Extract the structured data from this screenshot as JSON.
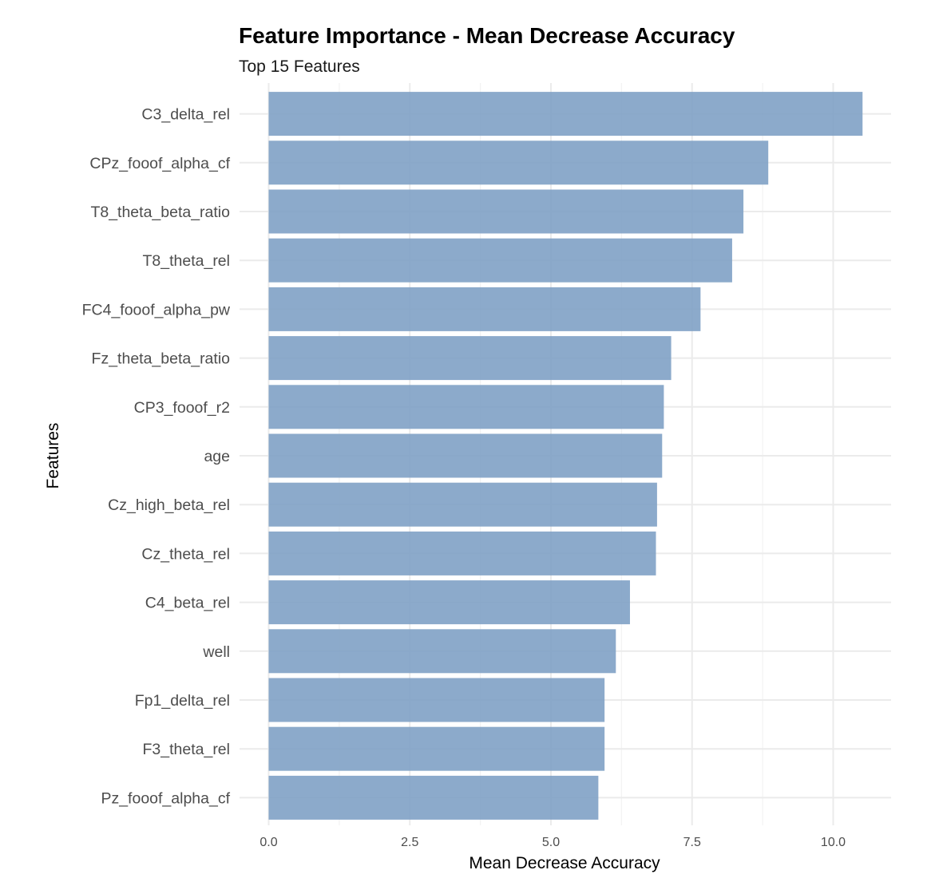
{
  "chart_data": {
    "type": "bar",
    "orientation": "horizontal",
    "title": "Feature Importance - Mean Decrease Accuracy",
    "subtitle": "Top 15 Features",
    "xlabel": "Mean Decrease Accuracy",
    "ylabel": "Features",
    "xlim": [
      0,
      10.5
    ],
    "x_ticks": [
      "0.0",
      "2.5",
      "5.0",
      "7.5",
      "10.0"
    ],
    "x_tick_values": [
      0,
      2.5,
      5.0,
      7.5,
      10.0
    ],
    "grid": true,
    "legend": "none",
    "bar_color": "#7fa1c5",
    "categories": [
      "C3_delta_rel",
      "CPz_fooof_alpha_cf",
      "T8_theta_beta_ratio",
      "T8_theta_rel",
      "FC4_fooof_alpha_pw",
      "Fz_theta_beta_ratio",
      "CP3_fooof_r2",
      "age",
      "Cz_high_beta_rel",
      "Cz_theta_rel",
      "C4_beta_rel",
      "well",
      "Fp1_delta_rel",
      "F3_theta_rel",
      "Pz_fooof_alpha_cf"
    ],
    "values": [
      10.52,
      8.85,
      8.41,
      8.21,
      7.65,
      7.13,
      7.0,
      6.97,
      6.88,
      6.86,
      6.4,
      6.15,
      5.95,
      5.95,
      5.84
    ]
  }
}
